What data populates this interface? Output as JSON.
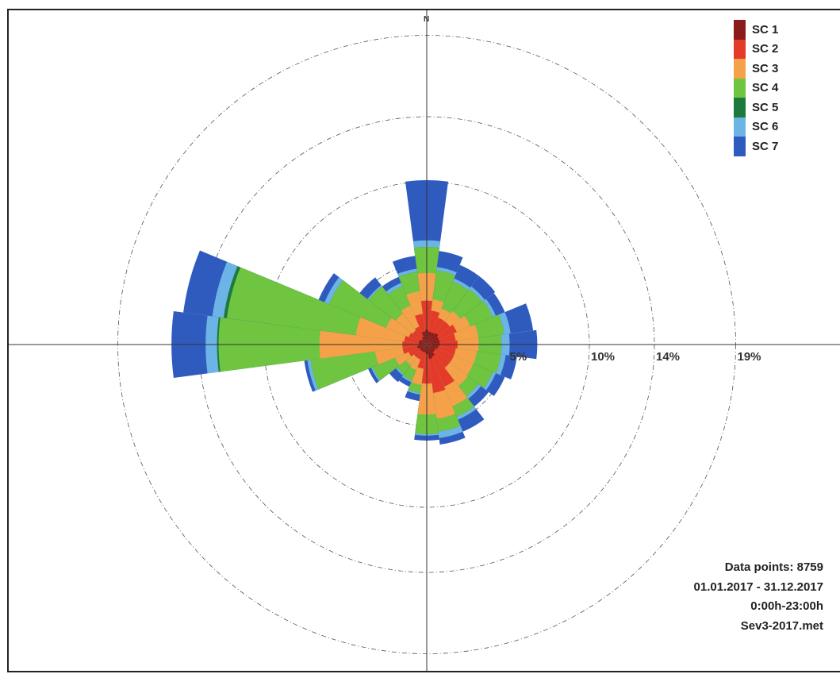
{
  "chart_data": {
    "type": "wind-rose",
    "north_label": "N",
    "rings": [
      {
        "value": 5,
        "label": "5%"
      },
      {
        "value": 10,
        "label": "10%"
      },
      {
        "value": 14,
        "label": "14%"
      },
      {
        "value": 19,
        "label": "19%"
      }
    ],
    "legend": [
      {
        "label": "SC 1",
        "color": "#8b1c1c"
      },
      {
        "label": "SC 2",
        "color": "#e33a2a"
      },
      {
        "label": "SC 3",
        "color": "#f5a14a"
      },
      {
        "label": "SC 4",
        "color": "#6fc440"
      },
      {
        "label": "SC 5",
        "color": "#1c7a3e"
      },
      {
        "label": "SC 6",
        "color": "#6cb4e6"
      },
      {
        "label": "SC 7",
        "color": "#2f5bbf"
      }
    ],
    "sector_width_deg": 15,
    "sectors": [
      {
        "dir": 0,
        "cum": [
          0.9,
          2.7,
          4.4,
          6.0,
          6.0,
          6.4,
          10.1
        ]
      },
      {
        "dir": 15,
        "cum": [
          0.8,
          2.1,
          2.8,
          4.6,
          4.6,
          4.8,
          5.8
        ]
      },
      {
        "dir": 30,
        "cum": [
          0.8,
          1.8,
          2.4,
          4.2,
          4.2,
          4.4,
          5.3
        ]
      },
      {
        "dir": 45,
        "cum": [
          0.9,
          1.8,
          2.6,
          4.3,
          4.3,
          4.5,
          5.3
        ]
      },
      {
        "dir": 60,
        "cum": [
          0.8,
          2.0,
          2.9,
          4.4,
          4.4,
          4.6,
          5.2
        ]
      },
      {
        "dir": 75,
        "cum": [
          0.8,
          1.8,
          3.2,
          4.8,
          4.8,
          5.2,
          6.6
        ]
      },
      {
        "dir": 90,
        "cum": [
          0.8,
          1.9,
          3.2,
          4.6,
          4.6,
          5.1,
          6.8
        ]
      },
      {
        "dir": 105,
        "cum": [
          0.7,
          1.8,
          3.1,
          4.6,
          4.6,
          4.9,
          5.6
        ]
      },
      {
        "dir": 120,
        "cum": [
          0.6,
          1.8,
          3.1,
          4.4,
          4.4,
          4.6,
          5.2
        ]
      },
      {
        "dir": 135,
        "cum": [
          0.6,
          1.8,
          3.2,
          4.0,
          4.0,
          4.2,
          4.8
        ]
      },
      {
        "dir": 150,
        "cum": [
          0.8,
          2.8,
          4.1,
          4.8,
          4.8,
          5.0,
          5.8
        ]
      },
      {
        "dir": 165,
        "cum": [
          0.9,
          3.0,
          4.6,
          5.4,
          5.4,
          5.8,
          6.2
        ]
      },
      {
        "dir": 180,
        "cum": [
          0.6,
          2.4,
          4.3,
          5.5,
          5.5,
          5.6,
          5.9
        ]
      },
      {
        "dir": 195,
        "cum": [
          0.5,
          1.5,
          2.5,
          3.0,
          3.0,
          3.1,
          3.5
        ]
      },
      {
        "dir": 210,
        "cum": [
          0.5,
          1.0,
          1.7,
          2.4,
          2.4,
          2.5,
          2.8
        ]
      },
      {
        "dir": 225,
        "cum": [
          0.5,
          1.0,
          1.6,
          2.3,
          2.3,
          2.4,
          2.9
        ]
      },
      {
        "dir": 240,
        "cum": [
          0.5,
          1.2,
          2.1,
          3.6,
          3.6,
          3.7,
          3.9
        ]
      },
      {
        "dir": 255,
        "cum": [
          0.6,
          1.5,
          3.2,
          7.2,
          7.2,
          7.4,
          7.6
        ]
      },
      {
        "dir": 270,
        "cum": [
          0.5,
          1.5,
          6.6,
          12.8,
          12.9,
          13.6,
          15.7
        ]
      },
      {
        "dir": 285,
        "cum": [
          0.5,
          1.4,
          4.4,
          12.4,
          12.6,
          13.3,
          15.1
        ]
      },
      {
        "dir": 300,
        "cum": [
          0.5,
          1.2,
          2.7,
          6.5,
          6.5,
          6.8,
          7.2
        ]
      },
      {
        "dir": 315,
        "cum": [
          0.4,
          1.1,
          2.4,
          4.5,
          4.5,
          4.6,
          5.2
        ]
      },
      {
        "dir": 330,
        "cum": [
          0.5,
          1.2,
          2.6,
          3.9,
          3.9,
          4.1,
          4.5
        ]
      },
      {
        "dir": 345,
        "cum": [
          0.8,
          1.9,
          3.3,
          4.5,
          4.5,
          4.7,
          5.5
        ]
      }
    ]
  },
  "info": {
    "data_points": "Data points: 8759",
    "period": "01.01.2017 - 31.12.2017",
    "hours": "0:00h-23:00h",
    "file": "Sev3-2017.met"
  }
}
